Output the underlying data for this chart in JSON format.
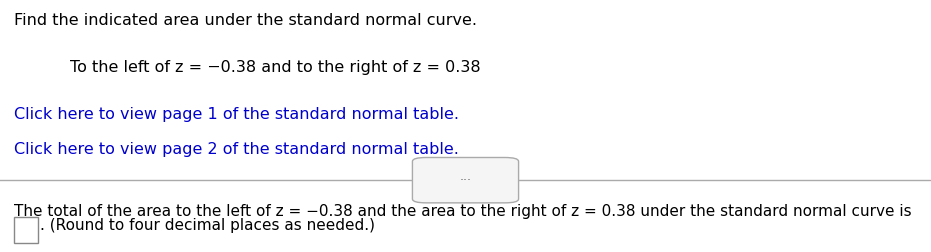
{
  "line1": "Find the indicated area under the standard normal curve.",
  "line2": "To the left of z = −0.38 and to the right of z = 0.38",
  "link1": "Click here to view page 1 of the standard normal table.",
  "link2": "Click here to view page 2 of the standard normal table.",
  "divider_dots": "⋯",
  "bottom_line": "The total of the area to the left of z = −0.38 and the area to the right of z = 0.38 under the standard normal curve is",
  "bottom_line2": "(Round to four decimal places as needed.)",
  "bg_color": "#ffffff",
  "text_color": "#000000",
  "link_color": "#0000cc",
  "divider_color": "#aaaaaa",
  "font_size_main": 11.5,
  "font_size_link": 11.5,
  "font_size_bottom": 11.0
}
